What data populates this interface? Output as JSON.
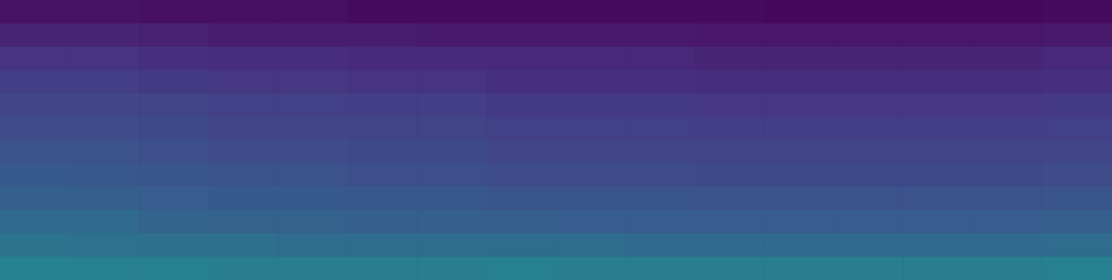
{
  "chart_data": {
    "type": "heatmap",
    "color": "viridis",
    "tick_labels": false,
    "grid": false,
    "zlim": [
      0,
      1
    ],
    "cells": [
      [
        0.05,
        0.05,
        0.04,
        0.04,
        0.04,
        0.03,
        0.03,
        0.03,
        0.03,
        0.03,
        0.03,
        0.02,
        0.02,
        0.02,
        0.02,
        0.03
      ],
      [
        0.1,
        0.1,
        0.09,
        0.08,
        0.08,
        0.08,
        0.07,
        0.07,
        0.07,
        0.07,
        0.06,
        0.06,
        0.06,
        0.06,
        0.06,
        0.07
      ],
      [
        0.15,
        0.15,
        0.14,
        0.13,
        0.13,
        0.12,
        0.12,
        0.11,
        0.11,
        0.11,
        0.1,
        0.1,
        0.1,
        0.1,
        0.1,
        0.11
      ],
      [
        0.18,
        0.18,
        0.17,
        0.16,
        0.16,
        0.15,
        0.15,
        0.14,
        0.14,
        0.14,
        0.13,
        0.13,
        0.13,
        0.13,
        0.13,
        0.14
      ],
      [
        0.21,
        0.21,
        0.2,
        0.19,
        0.19,
        0.18,
        0.18,
        0.17,
        0.17,
        0.17,
        0.16,
        0.16,
        0.16,
        0.16,
        0.16,
        0.17
      ],
      [
        0.23,
        0.23,
        0.22,
        0.21,
        0.21,
        0.2,
        0.2,
        0.19,
        0.19,
        0.19,
        0.18,
        0.18,
        0.18,
        0.18,
        0.18,
        0.19
      ],
      [
        0.25,
        0.25,
        0.24,
        0.23,
        0.23,
        0.22,
        0.22,
        0.21,
        0.21,
        0.21,
        0.2,
        0.2,
        0.2,
        0.2,
        0.2,
        0.21
      ],
      [
        0.28,
        0.27,
        0.26,
        0.25,
        0.25,
        0.24,
        0.24,
        0.23,
        0.23,
        0.23,
        0.22,
        0.22,
        0.22,
        0.22,
        0.22,
        0.23
      ],
      [
        0.3,
        0.3,
        0.29,
        0.28,
        0.28,
        0.27,
        0.27,
        0.26,
        0.26,
        0.26,
        0.25,
        0.25,
        0.25,
        0.25,
        0.25,
        0.26
      ],
      [
        0.34,
        0.34,
        0.32,
        0.31,
        0.31,
        0.3,
        0.3,
        0.3,
        0.29,
        0.29,
        0.29,
        0.29,
        0.29,
        0.29,
        0.29,
        0.3
      ],
      [
        0.38,
        0.37,
        0.36,
        0.36,
        0.35,
        0.35,
        0.35,
        0.35,
        0.35,
        0.34,
        0.34,
        0.34,
        0.34,
        0.34,
        0.34,
        0.35
      ],
      [
        0.44,
        0.43,
        0.43,
        0.42,
        0.42,
        0.42,
        0.42,
        0.43,
        0.42,
        0.42,
        0.42,
        0.42,
        0.42,
        0.42,
        0.42,
        0.43
      ]
    ]
  }
}
